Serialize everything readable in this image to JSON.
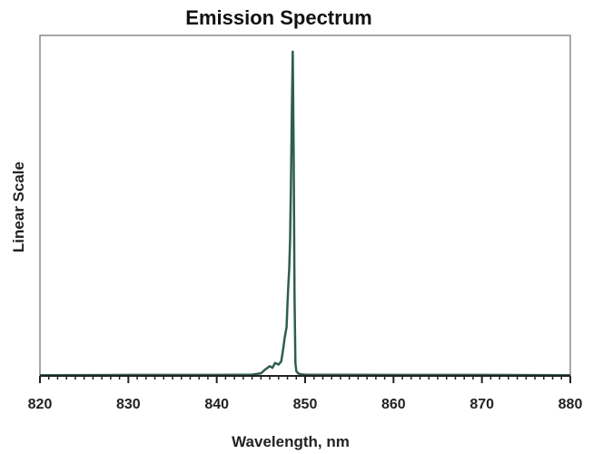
{
  "chart_data": {
    "type": "line",
    "title": "Emission Spectrum",
    "xlabel": "Wavelength, nm",
    "ylabel": "Linear Scale",
    "xlim": [
      820,
      880
    ],
    "ylim": [
      0,
      1.05
    ],
    "x_ticks": [
      820,
      830,
      840,
      850,
      860,
      870,
      880
    ],
    "x_minor_tick_step": 1,
    "y_ticks_shown": false,
    "grid": false,
    "line_color": "#2f5e4e",
    "series": [
      {
        "x": [
          820,
          830,
          840,
          844,
          845,
          845.5,
          846,
          846.3,
          846.6,
          847,
          847.3,
          847.5,
          847.7,
          847.9,
          848.0,
          848.1,
          848.2,
          848.3,
          848.4,
          848.5,
          848.6,
          848.7,
          848.8,
          848.9,
          849.0,
          849.2,
          849.5,
          850,
          860,
          870,
          880
        ],
        "y": [
          0.002,
          0.003,
          0.003,
          0.004,
          0.008,
          0.02,
          0.03,
          0.025,
          0.04,
          0.035,
          0.045,
          0.08,
          0.12,
          0.15,
          0.22,
          0.28,
          0.33,
          0.42,
          0.6,
          0.82,
          1.0,
          0.7,
          0.25,
          0.04,
          0.015,
          0.008,
          0.005,
          0.004,
          0.003,
          0.003,
          0.002
        ]
      }
    ]
  }
}
